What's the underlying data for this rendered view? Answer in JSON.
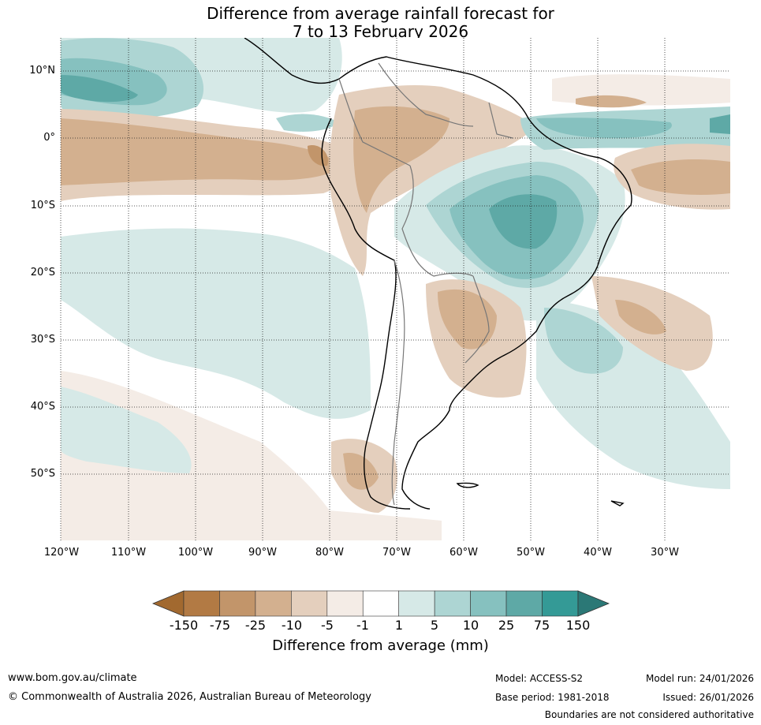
{
  "title": {
    "line1": "Difference from average rainfall forecast for",
    "line2": "7 to 13 February 2026"
  },
  "lat_labels": [
    "10°N",
    "0°",
    "10°S",
    "20°S",
    "30°S",
    "40°S",
    "50°S"
  ],
  "lon_labels": [
    "120°W",
    "110°W",
    "100°W",
    "90°W",
    "80°W",
    "70°W",
    "60°W",
    "50°W",
    "40°W",
    "30°W"
  ],
  "colorbar": {
    "labels": [
      "-150",
      "-75",
      "-25",
      "-10",
      "-5",
      "-1",
      "1",
      "5",
      "10",
      "25",
      "75",
      "150"
    ],
    "colors": [
      "#a2692f",
      "#b27a44",
      "#c2956a",
      "#d3b08f",
      "#e4cfbd",
      "#f4ece6",
      "#ffffff",
      "#d6e9e7",
      "#add5d3",
      "#86c1bf",
      "#5ea9a6",
      "#349a96",
      "#2b7876"
    ],
    "title": "Difference from average (mm)"
  },
  "footer": {
    "website": "www.bom.gov.au/climate",
    "copyright": "© Commonwealth of Australia 2026, Australian Bureau of Meteorology",
    "model": "Model: ACCESS-S2",
    "base_period": "Base period: 1981-2018",
    "model_run": "Model run: 24/01/2026",
    "issued": "Issued: 26/01/2026",
    "boundaries_note": "Boundaries are not considered authoritative"
  }
}
